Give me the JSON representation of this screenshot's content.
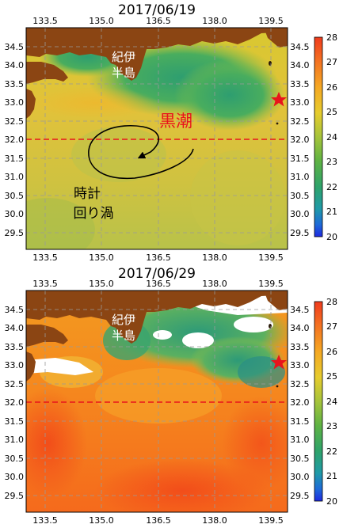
{
  "panels": [
    {
      "title": "2017/06/19",
      "kuroshio_label": "黒潮",
      "peninsula_label": [
        "紀伊",
        "半島"
      ],
      "eddy_label": [
        "時計",
        "回り渦"
      ],
      "star_color": "#e8141c",
      "latitude_line_color": "#e8141c"
    },
    {
      "title": "2017/06/29",
      "peninsula_label": [
        "紀伊",
        "半島"
      ],
      "star_color": "#e8141c",
      "latitude_line_color": "#e8141c"
    }
  ],
  "x_ticks": [
    "133.5",
    "135.0",
    "136.5",
    "138.0",
    "139.5"
  ],
  "y_ticks": [
    "34.5",
    "34.0",
    "33.5",
    "33.0",
    "32.5",
    "32.0",
    "31.5",
    "31.0",
    "30.5",
    "30.0",
    "29.5"
  ],
  "colorbar_ticks": [
    "28",
    "27",
    "26",
    "25",
    "24",
    "23",
    "22",
    "21",
    "20"
  ],
  "colors": {
    "land": "#8b4513",
    "cold_water": "#3aa06a",
    "warm_water": "#ff6a1a"
  }
}
